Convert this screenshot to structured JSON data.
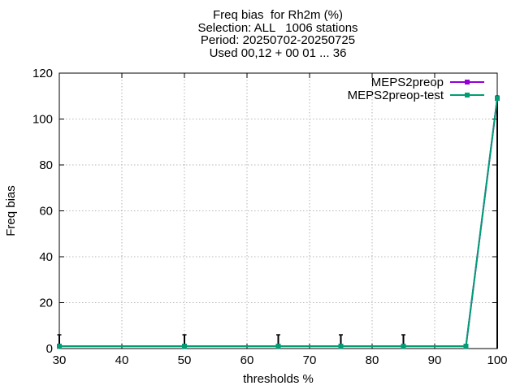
{
  "chart_data": {
    "type": "line",
    "title": "Freq bias  for Rh2m (%)",
    "subtitle": [
      "Selection: ALL   1006 stations",
      "Period: 20250702-20250725",
      "Used 00,12 + 00 01 ... 36"
    ],
    "xlabel": "thresholds %",
    "ylabel": "Freq bias",
    "xlim": [
      30,
      100
    ],
    "ylim": [
      0,
      120
    ],
    "xticks": [
      30,
      40,
      50,
      60,
      70,
      80,
      90,
      100
    ],
    "yticks": [
      0,
      20,
      40,
      60,
      80,
      100,
      120
    ],
    "grid": true,
    "legend_position": "top-right",
    "x": [
      30,
      50,
      65,
      75,
      85,
      95,
      100
    ],
    "series": [
      {
        "name": "MEPS2preop",
        "color": "#9400d3",
        "values": [
          1,
          1,
          1,
          1,
          1,
          1,
          109
        ]
      },
      {
        "name": "MEPS2preop-test",
        "color": "#009e73",
        "values": [
          1,
          1,
          1,
          1,
          1,
          1,
          109
        ]
      }
    ],
    "error_bars": [
      {
        "x": 30,
        "low": 0,
        "high": 6
      },
      {
        "x": 50,
        "low": 0,
        "high": 6
      },
      {
        "x": 65,
        "low": 0,
        "high": 6
      },
      {
        "x": 75,
        "low": 0,
        "high": 6
      },
      {
        "x": 85,
        "low": 0,
        "high": 6
      },
      {
        "x": 95,
        "low": 0,
        "high": 1
      },
      {
        "x": 100,
        "low": 0,
        "high": 110
      }
    ]
  }
}
